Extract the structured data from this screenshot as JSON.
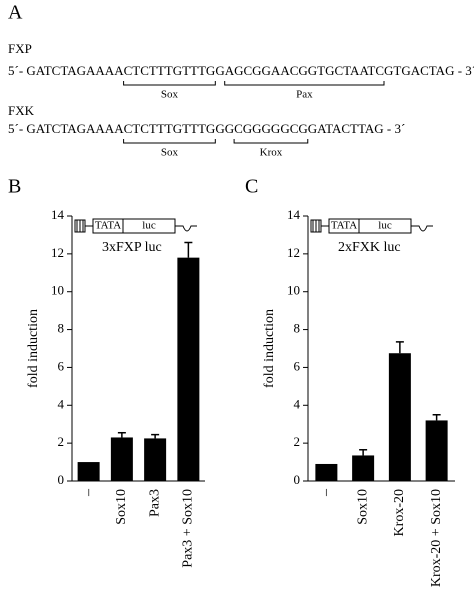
{
  "panel_a": {
    "label": "A",
    "sequences": [
      {
        "name": "FXP",
        "parts": [
          "5´- GATCTAGAAAA",
          "CTCTTTGTTTG",
          "G",
          "AGCGGAACGGTGCTAATC",
          "GTGACTAG - 3´"
        ],
        "sites": [
          {
            "part": 1,
            "label": "Sox"
          },
          {
            "part": 3,
            "label": "Pax"
          }
        ]
      },
      {
        "name": "FXK",
        "parts": [
          "5´- GATCTAGAAAA",
          "CTCTTTGTTTG",
          "GG",
          "CGGGGGCG",
          "GATACTTAG - 3´"
        ],
        "sites": [
          {
            "part": 1,
            "label": "Sox"
          },
          {
            "part": 3,
            "label": "Krox"
          }
        ]
      }
    ]
  },
  "chart_data": [
    {
      "type": "bar",
      "panel": "B",
      "annotation": "3xFXP luc",
      "construct": [
        "TATA",
        "luc"
      ],
      "ylabel": "fold induction",
      "categories": [
        "–",
        "Sox10",
        "Pax3",
        "Pax3 + Sox10"
      ],
      "values": [
        1,
        2.3,
        2.25,
        11.8
      ],
      "errors": [
        0,
        0.25,
        0.2,
        0.8
      ],
      "color": "#000000",
      "ylim": [
        0,
        14
      ],
      "yticks": [
        0,
        2,
        4,
        6,
        8,
        10,
        12,
        14
      ]
    },
    {
      "type": "bar",
      "panel": "C",
      "annotation": "2xFXK luc",
      "construct": [
        "TATA",
        "luc"
      ],
      "ylabel": "fold induction",
      "categories": [
        "–",
        "Sox10",
        "Krox-20",
        "Krox-20 + Sox10"
      ],
      "values": [
        0.9,
        1.35,
        6.75,
        3.2
      ],
      "errors": [
        0,
        0.3,
        0.6,
        0.3
      ],
      "color": "#000000",
      "ylim": [
        0,
        14
      ],
      "yticks": [
        0,
        2,
        4,
        6,
        8,
        10,
        12,
        14
      ]
    }
  ]
}
